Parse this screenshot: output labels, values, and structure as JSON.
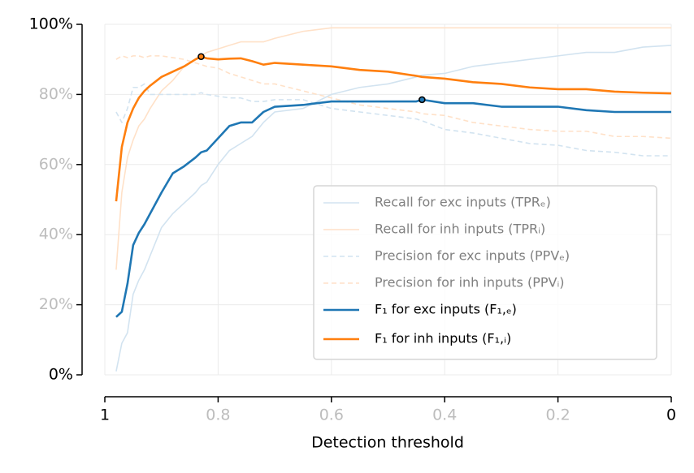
{
  "chart_data": {
    "type": "line",
    "xlabel": "Detection threshold",
    "xlim": [
      1,
      0
    ],
    "ylim": [
      0,
      100
    ],
    "xticks": [
      1,
      0.8,
      0.6,
      0.4,
      0.2,
      0
    ],
    "yticks": [
      {
        "value": 0,
        "label": "0%"
      },
      {
        "value": 20,
        "label": "20%"
      },
      {
        "value": 40,
        "label": "40%"
      },
      {
        "value": 60,
        "label": "60%"
      },
      {
        "value": 80,
        "label": "80%"
      },
      {
        "value": 100,
        "label": "100%"
      }
    ],
    "grid": true,
    "legend": "lower right",
    "x": [
      0.98,
      0.97,
      0.96,
      0.95,
      0.94,
      0.93,
      0.92,
      0.9,
      0.88,
      0.86,
      0.84,
      0.83,
      0.82,
      0.8,
      0.78,
      0.76,
      0.74,
      0.72,
      0.7,
      0.65,
      0.6,
      0.55,
      0.5,
      0.45,
      0.44,
      0.4,
      0.35,
      0.3,
      0.25,
      0.2,
      0.15,
      0.1,
      0.05,
      0
    ],
    "series": [
      {
        "name": "Recall for exc inputs (TPRₑ)",
        "color": "#d2e3f0",
        "dashed": false,
        "highlight_max": false,
        "values": [
          1,
          9,
          12,
          23,
          27,
          30,
          34,
          42,
          46,
          49,
          52,
          54,
          55,
          60,
          64,
          66,
          68,
          72,
          75,
          76,
          80,
          82,
          83,
          85,
          85.5,
          86,
          88,
          89,
          90,
          91,
          92,
          92,
          93.5,
          94
        ]
      },
      {
        "name": "Recall for inh inputs (TPRᵢ)",
        "color": "#ffe1c8",
        "dashed": false,
        "highlight_max": false,
        "values": [
          30,
          52,
          62,
          67,
          71,
          73,
          76,
          81,
          84,
          88,
          90,
          91,
          92,
          93,
          94,
          95,
          95,
          95,
          96,
          98,
          99,
          99,
          99,
          99,
          99,
          99,
          99,
          99,
          99,
          99,
          99,
          99,
          99,
          99
        ]
      },
      {
        "name": "Precision for exc inputs (PPVₑ)",
        "color": "#d2e3f0",
        "dashed": true,
        "highlight_max": false,
        "values": [
          75,
          72,
          76,
          82,
          82,
          83,
          80,
          80,
          80,
          80,
          80,
          80.5,
          80,
          79.5,
          79,
          79,
          78,
          78,
          78.5,
          78.5,
          76,
          75,
          74,
          73,
          72.5,
          70,
          69,
          67.5,
          66,
          65.5,
          64,
          63.5,
          62.5,
          62.5
        ]
      },
      {
        "name": "Precision for inh inputs (PPVᵢ)",
        "color": "#ffe1c8",
        "dashed": true,
        "highlight_max": false,
        "values": [
          90,
          91,
          90.5,
          91,
          91,
          90.5,
          91,
          91,
          90.5,
          90,
          89,
          88.5,
          88,
          87.5,
          86,
          85,
          84,
          83,
          83,
          81,
          79,
          77,
          76,
          75,
          74.5,
          74,
          72,
          71,
          70,
          69.5,
          69.5,
          68,
          68,
          67.5
        ]
      },
      {
        "name": "F₁ for exc inputs (F₁,ₑ)",
        "color": "#1f77b4",
        "dashed": false,
        "highlight_max": true,
        "values": [
          16.5,
          18,
          26,
          37,
          40.5,
          43,
          46,
          52,
          57.5,
          59.5,
          62,
          63.5,
          64,
          67.5,
          71,
          72,
          72,
          75,
          76.5,
          77,
          78,
          78,
          78,
          78,
          78.5,
          77.5,
          77.5,
          76.5,
          76.5,
          76.5,
          75.5,
          75,
          75,
          75
        ]
      },
      {
        "name": "F₁ for inh inputs (F₁,ᵢ)",
        "color": "#ff7f0e",
        "dashed": false,
        "highlight_max": true,
        "values": [
          49.5,
          65,
          72,
          76,
          79,
          81,
          82.5,
          85,
          86.5,
          88,
          90,
          90.8,
          90.3,
          90,
          90.2,
          90.3,
          89.5,
          88.5,
          89,
          88.5,
          88,
          87,
          86.5,
          85.3,
          85,
          84.5,
          83.5,
          83,
          82,
          81.5,
          81.5,
          80.8,
          80.5,
          80.3
        ]
      }
    ]
  }
}
